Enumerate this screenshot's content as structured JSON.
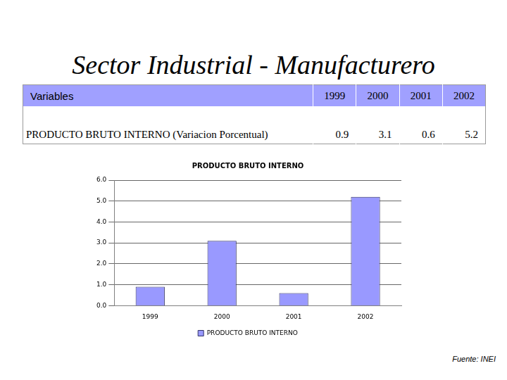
{
  "title": "Sector Industrial - Manufacturero",
  "table": {
    "header": [
      "Variables",
      "1999",
      "2000",
      "2001",
      "2002"
    ],
    "rows": [
      [
        "PRODUCTO BRUTO INTERNO (Variacion Porcentual)",
        0.9,
        3.1,
        0.6,
        5.2
      ]
    ]
  },
  "chart_data": {
    "type": "bar",
    "title": "PRODUCTO BRUTO INTERNO",
    "categories": [
      "1999",
      "2000",
      "2001",
      "2002"
    ],
    "series": [
      {
        "name": "PRODUCTO BRUTO INTERNO",
        "color": "#9999ff",
        "values": [
          0.9,
          3.1,
          0.6,
          5.2
        ]
      }
    ],
    "ylim": [
      0,
      6
    ],
    "yticks": [
      {
        "value": 0,
        "label": "0.0"
      },
      {
        "value": 1,
        "label": "1.0"
      },
      {
        "value": 2,
        "label": "2.0"
      },
      {
        "value": 3,
        "label": "3.0"
      },
      {
        "value": 4,
        "label": "4.0"
      },
      {
        "value": 5,
        "label": "5.0"
      },
      {
        "value": 6,
        "label": "6.0"
      }
    ],
    "grid": true,
    "legend": "bottom"
  },
  "source": "Fuente: INEI"
}
